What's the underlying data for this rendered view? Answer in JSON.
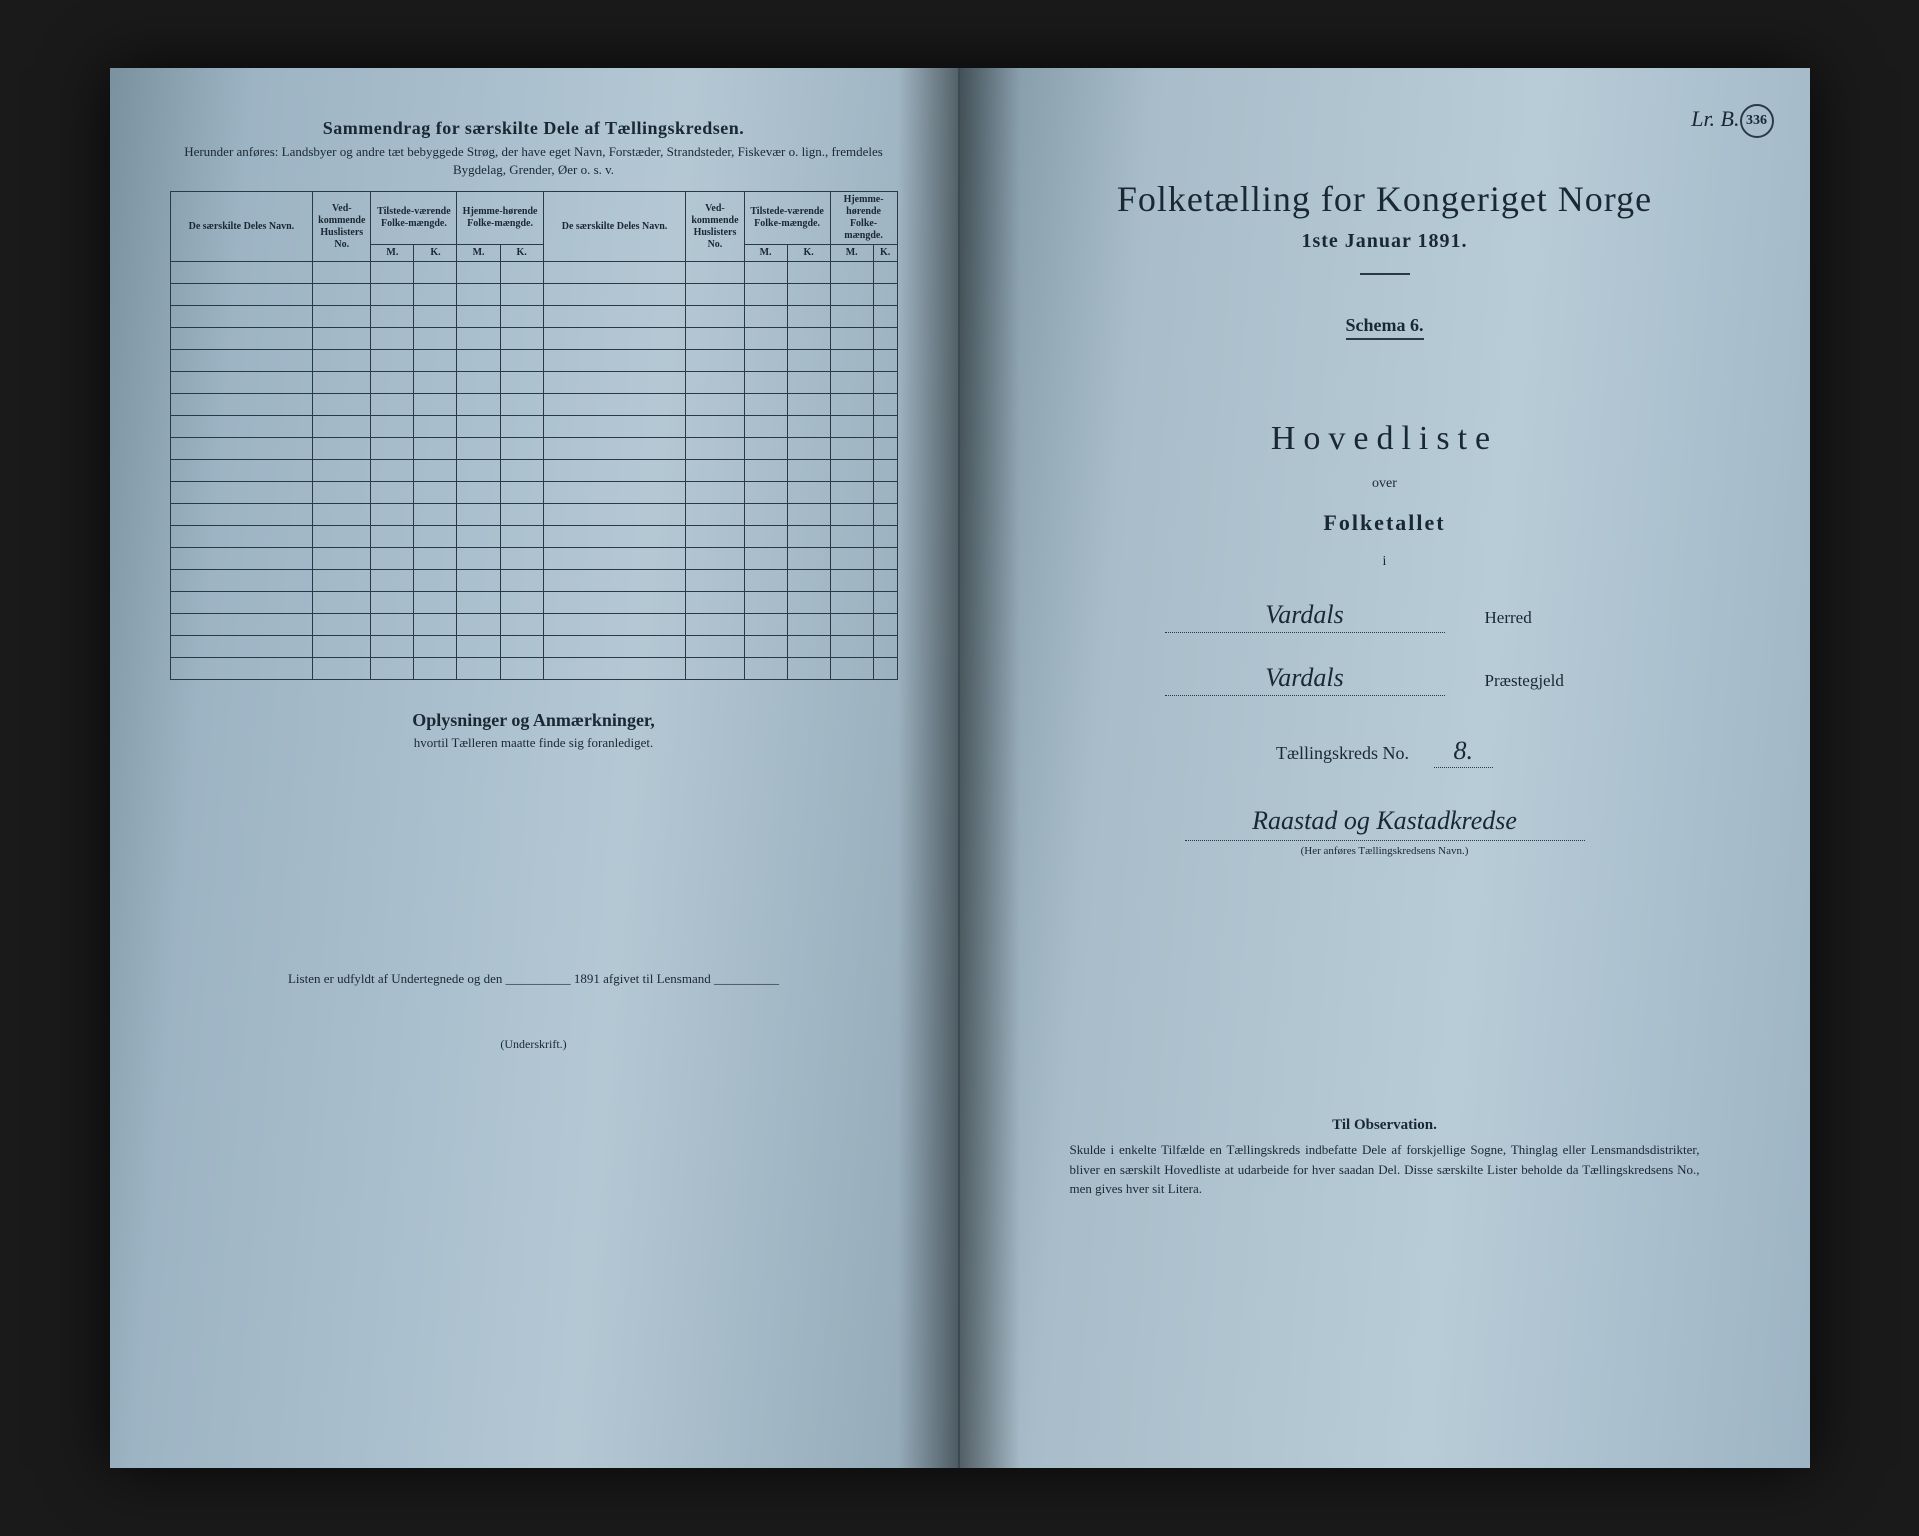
{
  "leftPage": {
    "headerTitle": "Sammendrag for særskilte Dele af Tællingskredsen.",
    "headerSubtitle": "Herunder anføres: Landsbyer og andre tæt bebyggede Strøg, der have eget Navn, Forstæder, Strandsteder, Fiskevær o. lign., fremdeles Bygdelag, Grender, Øer o. s. v.",
    "table": {
      "col1": "De særskilte Deles Navn.",
      "col2": "Ved-kommende Huslisters No.",
      "col3": "Tilstede-værende Folke-mængde.",
      "col4": "Hjemme-hørende Folke-mængde.",
      "col5": "De særskilte Deles Navn.",
      "col6": "Ved-kommende Huslisters No.",
      "col7": "Tilstede-værende Folke-mængde.",
      "col8": "Hjemme-hørende Folke-mængde.",
      "subM": "M.",
      "subK": "K."
    },
    "sectionTitle": "Oplysninger og Anmærkninger,",
    "sectionSub": "hvortil Tælleren maatte finde sig foranlediget.",
    "footerLine": "Listen er udfyldt af Undertegnede og den __________ 1891 afgivet til Lensmand __________",
    "signatureLabel": "(Underskrift.)"
  },
  "rightPage": {
    "annotationCorner": "Lr. B.",
    "stampNumber": "336",
    "mainTitle": "Folketælling for Kongeriget Norge",
    "date": "1ste Januar 1891.",
    "schema": "Schema 6.",
    "hovedliste": "Hovedliste",
    "over": "over",
    "folketallet": "Folketallet",
    "i": "i",
    "herredValue": "Vardals",
    "herredLabel": "Herred",
    "prestegjeldValue": "Vardals",
    "prestegjeldLabel": "Præstegjeld",
    "kredsLabel": "Tællingskreds No.",
    "kredsNo": "8.",
    "kredsName": "Raastad og Kastadkredse",
    "kredsHint": "(Her anføres Tællingskredsens Navn.)",
    "obsTitle": "Til Observation.",
    "obsText": "Skulde i enkelte Tilfælde en Tællingskreds indbefatte Dele af forskjellige Sogne, Thinglag eller Lensmandsdistrikter, bliver en særskilt Hovedliste at udarbeide for hver saadan Del. Disse særskilte Lister beholde da Tællingskredsens No., men gives hver sit Litera."
  }
}
